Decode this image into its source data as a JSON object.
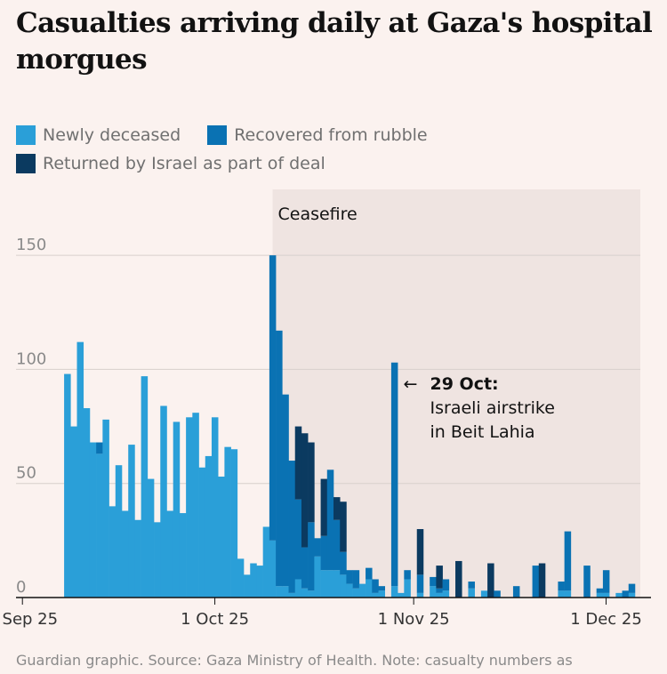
{
  "title": "Casualties arriving daily at Gaza's hospital morgues",
  "footnote": "Guardian graphic. Source: Gaza Ministry of Health. Note: casualty numbers as",
  "chart_data": {
    "type": "bar",
    "stacked": true,
    "x_start": "2025-08-31",
    "x_end": "2025-12-08",
    "ylim": [
      0,
      175
    ],
    "yticks": [
      0,
      50,
      100,
      150
    ],
    "xticks": [
      {
        "label": "1 Sep 25",
        "date": "2025-09-01"
      },
      {
        "label": "1 Oct 25",
        "date": "2025-10-01"
      },
      {
        "label": "1 Nov 25",
        "date": "2025-11-01"
      },
      {
        "label": "1 Dec 25",
        "date": "2025-12-01"
      }
    ],
    "dates": [
      "2025-08-31",
      "2025-09-01",
      "2025-09-02",
      "2025-09-03",
      "2025-09-04",
      "2025-09-05",
      "2025-09-06",
      "2025-09-07",
      "2025-09-08",
      "2025-09-09",
      "2025-09-10",
      "2025-09-11",
      "2025-09-12",
      "2025-09-13",
      "2025-09-14",
      "2025-09-15",
      "2025-09-16",
      "2025-09-17",
      "2025-09-18",
      "2025-09-19",
      "2025-09-20",
      "2025-09-21",
      "2025-09-22",
      "2025-09-23",
      "2025-09-24",
      "2025-09-25",
      "2025-09-26",
      "2025-09-27",
      "2025-09-28",
      "2025-09-29",
      "2025-09-30",
      "2025-10-01",
      "2025-10-02",
      "2025-10-03",
      "2025-10-04",
      "2025-10-05",
      "2025-10-06",
      "2025-10-07",
      "2025-10-08",
      "2025-10-09",
      "2025-10-10",
      "2025-10-11",
      "2025-10-12",
      "2025-10-13",
      "2025-10-14",
      "2025-10-15",
      "2025-10-16",
      "2025-10-17",
      "2025-10-18",
      "2025-10-19",
      "2025-10-20",
      "2025-10-21",
      "2025-10-22",
      "2025-10-23",
      "2025-10-24",
      "2025-10-25",
      "2025-10-26",
      "2025-10-27",
      "2025-10-28",
      "2025-10-29",
      "2025-10-30",
      "2025-10-31",
      "2025-11-01",
      "2025-11-02",
      "2025-11-03",
      "2025-11-04",
      "2025-11-05",
      "2025-11-06",
      "2025-11-07",
      "2025-11-08",
      "2025-11-09",
      "2025-11-10",
      "2025-11-11",
      "2025-11-12",
      "2025-11-13",
      "2025-11-14",
      "2025-11-15",
      "2025-11-16",
      "2025-11-17",
      "2025-11-18",
      "2025-11-19",
      "2025-11-20",
      "2025-11-21",
      "2025-11-22",
      "2025-11-23",
      "2025-11-24",
      "2025-11-25",
      "2025-11-26",
      "2025-11-27",
      "2025-11-28",
      "2025-11-29",
      "2025-11-30",
      "2025-12-01",
      "2025-12-02",
      "2025-12-03",
      "2025-12-04",
      "2025-12-05",
      "2025-12-06"
    ],
    "series": [
      {
        "name": "Newly deceased",
        "color": "#2a9fd8",
        "values": [
          0,
          0,
          0,
          0,
          0,
          0,
          0,
          0,
          98,
          75,
          112,
          83,
          68,
          63,
          78,
          40,
          58,
          38,
          67,
          34,
          97,
          52,
          33,
          84,
          38,
          77,
          37,
          79,
          81,
          57,
          62,
          79,
          53,
          66,
          65,
          17,
          10,
          15,
          14,
          31,
          25,
          5,
          5,
          2,
          8,
          4,
          3,
          18,
          12,
          12,
          12,
          10,
          6,
          4,
          6,
          8,
          2,
          3,
          0,
          5,
          2,
          8,
          0,
          2,
          0,
          5,
          2,
          3,
          0,
          0,
          0,
          4,
          0,
          3,
          0,
          0,
          0,
          0,
          0,
          0,
          0,
          0,
          0,
          0,
          0,
          3,
          3,
          0,
          0,
          0,
          0,
          2,
          2,
          0,
          2,
          0,
          2,
          0
        ]
      },
      {
        "name": "Recovered from rubble",
        "color": "#0a72b3",
        "values": [
          0,
          0,
          0,
          0,
          0,
          0,
          0,
          0,
          0,
          0,
          0,
          0,
          0,
          5,
          0,
          0,
          0,
          0,
          0,
          0,
          0,
          0,
          0,
          0,
          0,
          0,
          0,
          0,
          0,
          0,
          0,
          0,
          0,
          0,
          0,
          0,
          0,
          0,
          0,
          0,
          125,
          112,
          84,
          58,
          35,
          18,
          30,
          8,
          15,
          44,
          22,
          10,
          6,
          8,
          0,
          5,
          6,
          2,
          0,
          98,
          0,
          4,
          0,
          8,
          0,
          4,
          2,
          5,
          0,
          0,
          0,
          3,
          0,
          0,
          0,
          3,
          0,
          0,
          5,
          0,
          0,
          14,
          0,
          0,
          0,
          4,
          26,
          0,
          0,
          14,
          0,
          2,
          10,
          0,
          0,
          3,
          4,
          0
        ]
      },
      {
        "name": "Returned by Israel as part of deal",
        "color": "#0b3a60",
        "values": [
          0,
          0,
          0,
          0,
          0,
          0,
          0,
          0,
          0,
          0,
          0,
          0,
          0,
          0,
          0,
          0,
          0,
          0,
          0,
          0,
          0,
          0,
          0,
          0,
          0,
          0,
          0,
          0,
          0,
          0,
          0,
          0,
          0,
          0,
          0,
          0,
          0,
          0,
          0,
          0,
          0,
          0,
          0,
          0,
          32,
          50,
          35,
          0,
          25,
          0,
          10,
          22,
          0,
          0,
          0,
          0,
          0,
          0,
          0,
          0,
          0,
          0,
          0,
          20,
          0,
          0,
          10,
          0,
          0,
          16,
          0,
          0,
          0,
          0,
          15,
          0,
          0,
          0,
          0,
          0,
          0,
          0,
          15,
          0,
          0,
          0,
          0,
          0,
          0,
          0,
          0,
          0,
          0,
          0,
          0,
          0,
          0,
          0
        ]
      }
    ],
    "shaded_region": {
      "label": "Ceasefire",
      "start": "2025-10-10",
      "end": "2025-12-10"
    },
    "annotation": {
      "date": "2025-10-29",
      "arrow": "←",
      "heading": "29 Oct:",
      "lines": [
        "Israeli airstrike",
        "in Beit Lahia"
      ]
    }
  }
}
